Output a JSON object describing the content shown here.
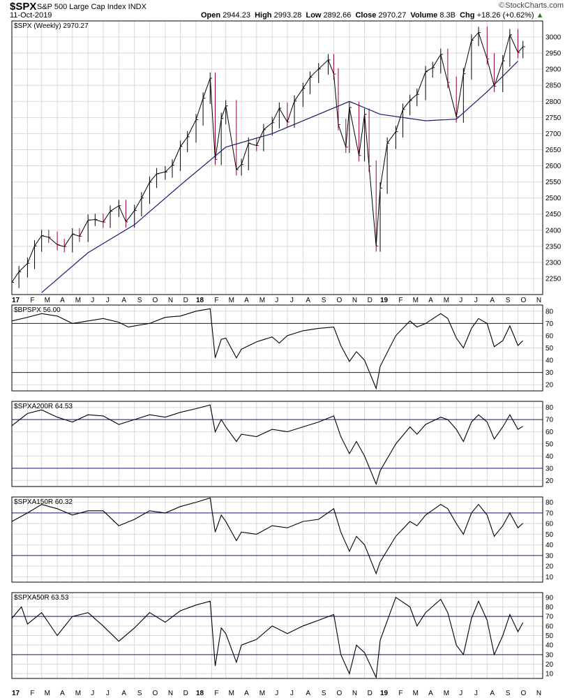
{
  "header": {
    "symbol": "$SPX",
    "long_name": "S&P 500 Large Cap Index  INDX",
    "date": "11-Oct-2019",
    "quote": {
      "open_label": "Open",
      "open": "2944.23",
      "high_label": "High",
      "high": "2993.28",
      "low_label": "Low",
      "low": "2892.66",
      "close_label": "Close",
      "close": "2970.27",
      "volume_label": "Volume",
      "volume": "8.3B",
      "chg_label": "Chg",
      "chg": "+18.26 (+0.62%)"
    },
    "watermark": "StockCharts.com",
    "watermark_icon": "chart-logo-icon"
  },
  "colors": {
    "up_bar": "#000000",
    "down_bar": "#990033",
    "moving_average": "#1a1a6e",
    "guide_lines": "#1a1a6e",
    "grid": "#d8d8d8",
    "breadth_line": "#000000"
  },
  "chart_data": [
    {
      "type": "line",
      "subtype": "ohlc_weekly_with_moving_average",
      "legend": "$SPX (Weekly) 2970.27",
      "ylim": [
        2200,
        3050
      ],
      "y_ticks": [
        2250,
        2300,
        2350,
        2400,
        2450,
        2500,
        2550,
        2600,
        2650,
        2700,
        2750,
        2800,
        2850,
        2900,
        2950,
        3000
      ],
      "x_tick_labels": [
        "17",
        "F",
        "M",
        "A",
        "M",
        "J",
        "J",
        "A",
        "S",
        "O",
        "N",
        "D",
        "18",
        "F",
        "M",
        "A",
        "M",
        "J",
        "J",
        "A",
        "S",
        "O",
        "N",
        "D",
        "19",
        "F",
        "M",
        "A",
        "M",
        "J",
        "J",
        "A",
        "S",
        "O",
        "N"
      ],
      "x_months": [
        "2017-01",
        "2017-02",
        "2017-03",
        "2017-04",
        "2017-05",
        "2017-06",
        "2017-07",
        "2017-08",
        "2017-09",
        "2017-10",
        "2017-11",
        "2017-12",
        "2018-01",
        "2018-02",
        "2018-03",
        "2018-04",
        "2018-05",
        "2018-06",
        "2018-07",
        "2018-08",
        "2018-09",
        "2018-10",
        "2018-11",
        "2018-12",
        "2019-01",
        "2019-02",
        "2019-03",
        "2019-04",
        "2019-05",
        "2019-06",
        "2019-07",
        "2019-08",
        "2019-09",
        "2019-10",
        "2019-11"
      ],
      "price": [
        [
          "2017-01",
          2238
        ],
        [
          "2017-01-15",
          2271
        ],
        [
          "2017-02",
          2297
        ],
        [
          "2017-02-15",
          2351
        ],
        [
          "2017-03",
          2383
        ],
        [
          "2017-03-15",
          2378
        ],
        [
          "2017-04",
          2355
        ],
        [
          "2017-04-15",
          2349
        ],
        [
          "2017-05",
          2388
        ],
        [
          "2017-05-15",
          2381
        ],
        [
          "2017-06",
          2431
        ],
        [
          "2017-06-15",
          2433
        ],
        [
          "2017-07",
          2425
        ],
        [
          "2017-07-15",
          2459
        ],
        [
          "2017-08",
          2476
        ],
        [
          "2017-08-15",
          2426
        ],
        [
          "2017-09",
          2461
        ],
        [
          "2017-09-15",
          2500
        ],
        [
          "2017-10",
          2549
        ],
        [
          "2017-10-15",
          2575
        ],
        [
          "2017-11",
          2581
        ],
        [
          "2017-11-15",
          2602
        ],
        [
          "2017-12",
          2660
        ],
        [
          "2017-12-15",
          2690
        ],
        [
          "2018-01",
          2743
        ],
        [
          "2018-01-15",
          2810
        ],
        [
          "2018-01-29",
          2872
        ],
        [
          "2018-02-08",
          2620
        ],
        [
          "2018-02-20",
          2747
        ],
        [
          "2018-03",
          2786
        ],
        [
          "2018-03-22",
          2588
        ],
        [
          "2018-04",
          2604
        ],
        [
          "2018-04-15",
          2670
        ],
        [
          "2018-05",
          2663
        ],
        [
          "2018-05-15",
          2712
        ],
        [
          "2018-06",
          2734
        ],
        [
          "2018-06-15",
          2779
        ],
        [
          "2018-07",
          2736
        ],
        [
          "2018-07-15",
          2801
        ],
        [
          "2018-08",
          2840
        ],
        [
          "2018-08-15",
          2875
        ],
        [
          "2018-09",
          2901
        ],
        [
          "2018-09-20",
          2929
        ],
        [
          "2018-10",
          2885
        ],
        [
          "2018-10-10",
          2728
        ],
        [
          "2018-10-25",
          2658
        ],
        [
          "2018-11",
          2781
        ],
        [
          "2018-11-20",
          2632
        ],
        [
          "2018-12",
          2760
        ],
        [
          "2018-12-10",
          2599
        ],
        [
          "2018-12-24",
          2351
        ],
        [
          "2019-01",
          2531
        ],
        [
          "2019-01-15",
          2670
        ],
        [
          "2019-02",
          2706
        ],
        [
          "2019-02-15",
          2775
        ],
        [
          "2019-03",
          2803
        ],
        [
          "2019-03-15",
          2822
        ],
        [
          "2019-04",
          2892
        ],
        [
          "2019-04-15",
          2905
        ],
        [
          "2019-05",
          2946
        ],
        [
          "2019-05-15",
          2859
        ],
        [
          "2019-06",
          2752
        ],
        [
          "2019-06-15",
          2886
        ],
        [
          "2019-07",
          2990
        ],
        [
          "2019-07-15",
          3014
        ],
        [
          "2019-08",
          2932
        ],
        [
          "2019-08-15",
          2847
        ],
        [
          "2019-09",
          2926
        ],
        [
          "2019-09-15",
          3007
        ],
        [
          "2019-10",
          2952
        ],
        [
          "2019-10-11",
          2970
        ]
      ],
      "moving_average": [
        [
          "2017-03",
          2206
        ],
        [
          "2017-06",
          2330
        ],
        [
          "2017-09",
          2417
        ],
        [
          "2017-12",
          2540
        ],
        [
          "2018-03",
          2658
        ],
        [
          "2018-06",
          2700
        ],
        [
          "2018-09",
          2760
        ],
        [
          "2018-11",
          2800
        ],
        [
          "2019-01",
          2760
        ],
        [
          "2019-04",
          2740
        ],
        [
          "2019-06",
          2745
        ],
        [
          "2019-08",
          2830
        ],
        [
          "2019-10",
          2925
        ]
      ]
    },
    {
      "type": "line",
      "legend": "$BPSPX 56.00",
      "ylim": [
        15,
        85
      ],
      "y_ticks": [
        20,
        30,
        40,
        50,
        60,
        70,
        80
      ],
      "guides": [
        70,
        30
      ],
      "values": [
        [
          "2017-01",
          72
        ],
        [
          "2017-02",
          75
        ],
        [
          "2017-03",
          78
        ],
        [
          "2017-04",
          76
        ],
        [
          "2017-05",
          70
        ],
        [
          "2017-06",
          72
        ],
        [
          "2017-07",
          74
        ],
        [
          "2017-08",
          71
        ],
        [
          "2017-08-20",
          67
        ],
        [
          "2017-09",
          68
        ],
        [
          "2017-10",
          70
        ],
        [
          "2017-11",
          75
        ],
        [
          "2017-12",
          76
        ],
        [
          "2018-01",
          80
        ],
        [
          "2018-01-29",
          82
        ],
        [
          "2018-02-08",
          42
        ],
        [
          "2018-02-20",
          57
        ],
        [
          "2018-03",
          58
        ],
        [
          "2018-03-22",
          42
        ],
        [
          "2018-04",
          49
        ],
        [
          "2018-05",
          55
        ],
        [
          "2018-06",
          59
        ],
        [
          "2018-06-15",
          54
        ],
        [
          "2018-07",
          60
        ],
        [
          "2018-08",
          64
        ],
        [
          "2018-09",
          66
        ],
        [
          "2018-10",
          67
        ],
        [
          "2018-10-15",
          52
        ],
        [
          "2018-11",
          39
        ],
        [
          "2018-11-15",
          47
        ],
        [
          "2018-12",
          40
        ],
        [
          "2018-12-24",
          17
        ],
        [
          "2019-01",
          35
        ],
        [
          "2019-02",
          60
        ],
        [
          "2019-03",
          72
        ],
        [
          "2019-03-15",
          67
        ],
        [
          "2019-04",
          70
        ],
        [
          "2019-05",
          78
        ],
        [
          "2019-05-15",
          74
        ],
        [
          "2019-06",
          58
        ],
        [
          "2019-06-15",
          50
        ],
        [
          "2019-07",
          66
        ],
        [
          "2019-07-15",
          74
        ],
        [
          "2019-08",
          70
        ],
        [
          "2019-08-15",
          51
        ],
        [
          "2019-09",
          56
        ],
        [
          "2019-09-15",
          68
        ],
        [
          "2019-10",
          52
        ],
        [
          "2019-10-11",
          56
        ]
      ]
    },
    {
      "type": "line",
      "legend": "$SPXA200R 64.53",
      "ylim": [
        15,
        85
      ],
      "y_ticks": [
        20,
        30,
        40,
        50,
        60,
        70,
        80
      ],
      "guides": [
        70,
        30
      ],
      "values": [
        [
          "2017-01",
          65
        ],
        [
          "2017-02",
          75
        ],
        [
          "2017-03",
          78
        ],
        [
          "2017-04",
          72
        ],
        [
          "2017-05",
          68
        ],
        [
          "2017-06",
          74
        ],
        [
          "2017-07",
          73
        ],
        [
          "2017-08",
          66
        ],
        [
          "2017-09",
          70
        ],
        [
          "2017-10",
          74
        ],
        [
          "2017-11",
          72
        ],
        [
          "2017-12",
          76
        ],
        [
          "2018-01",
          79
        ],
        [
          "2018-01-29",
          82
        ],
        [
          "2018-02-08",
          60
        ],
        [
          "2018-02-20",
          70
        ],
        [
          "2018-03",
          64
        ],
        [
          "2018-03-22",
          52
        ],
        [
          "2018-04",
          58
        ],
        [
          "2018-05",
          56
        ],
        [
          "2018-06",
          62
        ],
        [
          "2018-07",
          60
        ],
        [
          "2018-08",
          64
        ],
        [
          "2018-09",
          68
        ],
        [
          "2018-10",
          73
        ],
        [
          "2018-10-15",
          56
        ],
        [
          "2018-11",
          42
        ],
        [
          "2018-11-15",
          52
        ],
        [
          "2018-12",
          40
        ],
        [
          "2018-12-24",
          17
        ],
        [
          "2019-01",
          28
        ],
        [
          "2019-02",
          50
        ],
        [
          "2019-03",
          64
        ],
        [
          "2019-03-15",
          58
        ],
        [
          "2019-04",
          66
        ],
        [
          "2019-05",
          72
        ],
        [
          "2019-05-15",
          70
        ],
        [
          "2019-06",
          62
        ],
        [
          "2019-06-15",
          52
        ],
        [
          "2019-07",
          68
        ],
        [
          "2019-07-15",
          74
        ],
        [
          "2019-08",
          68
        ],
        [
          "2019-08-15",
          54
        ],
        [
          "2019-09",
          64
        ],
        [
          "2019-09-15",
          74
        ],
        [
          "2019-10",
          62
        ],
        [
          "2019-10-11",
          64.53
        ]
      ]
    },
    {
      "type": "line",
      "legend": "$SPXA150R 60.32",
      "ylim": [
        5,
        85
      ],
      "y_ticks": [
        10,
        20,
        30,
        40,
        50,
        60,
        70,
        80
      ],
      "guides": [
        70,
        30
      ],
      "values": [
        [
          "2017-01",
          62
        ],
        [
          "2017-02",
          70
        ],
        [
          "2017-03",
          78
        ],
        [
          "2017-04",
          74
        ],
        [
          "2017-05",
          68
        ],
        [
          "2017-06",
          72
        ],
        [
          "2017-07",
          72
        ],
        [
          "2017-08",
          58
        ],
        [
          "2017-09",
          64
        ],
        [
          "2017-10",
          72
        ],
        [
          "2017-11",
          70
        ],
        [
          "2017-12",
          76
        ],
        [
          "2018-01",
          80
        ],
        [
          "2018-01-29",
          84
        ],
        [
          "2018-02-08",
          52
        ],
        [
          "2018-02-20",
          68
        ],
        [
          "2018-03",
          62
        ],
        [
          "2018-03-22",
          44
        ],
        [
          "2018-04",
          52
        ],
        [
          "2018-05",
          50
        ],
        [
          "2018-06",
          58
        ],
        [
          "2018-07",
          56
        ],
        [
          "2018-08",
          62
        ],
        [
          "2018-09",
          64
        ],
        [
          "2018-10",
          74
        ],
        [
          "2018-10-15",
          52
        ],
        [
          "2018-11",
          34
        ],
        [
          "2018-11-15",
          48
        ],
        [
          "2018-12",
          40
        ],
        [
          "2018-12-24",
          13
        ],
        [
          "2019-01",
          24
        ],
        [
          "2019-02",
          48
        ],
        [
          "2019-03",
          62
        ],
        [
          "2019-03-15",
          58
        ],
        [
          "2019-04",
          68
        ],
        [
          "2019-05",
          78
        ],
        [
          "2019-05-15",
          74
        ],
        [
          "2019-06",
          60
        ],
        [
          "2019-06-15",
          50
        ],
        [
          "2019-07",
          70
        ],
        [
          "2019-07-15",
          78
        ],
        [
          "2019-08",
          68
        ],
        [
          "2019-08-15",
          48
        ],
        [
          "2019-09",
          58
        ],
        [
          "2019-09-15",
          70
        ],
        [
          "2019-10",
          56
        ],
        [
          "2019-10-11",
          60.32
        ]
      ]
    },
    {
      "type": "line",
      "legend": "$SPXA50R 63.53",
      "ylim": [
        5,
        95
      ],
      "y_ticks": [
        10,
        20,
        30,
        40,
        50,
        60,
        70,
        80,
        90
      ],
      "guides": [
        70,
        30
      ],
      "values": [
        [
          "2017-01",
          68
        ],
        [
          "2017-01-20",
          80
        ],
        [
          "2017-02",
          62
        ],
        [
          "2017-03",
          74
        ],
        [
          "2017-04",
          50
        ],
        [
          "2017-05",
          70
        ],
        [
          "2017-06",
          74
        ],
        [
          "2017-07",
          60
        ],
        [
          "2017-08",
          44
        ],
        [
          "2017-09",
          58
        ],
        [
          "2017-10",
          74
        ],
        [
          "2017-11",
          64
        ],
        [
          "2017-12",
          76
        ],
        [
          "2018-01",
          82
        ],
        [
          "2018-01-29",
          86
        ],
        [
          "2018-02-08",
          18
        ],
        [
          "2018-02-20",
          58
        ],
        [
          "2018-03",
          52
        ],
        [
          "2018-03-22",
          22
        ],
        [
          "2018-04",
          40
        ],
        [
          "2018-05",
          46
        ],
        [
          "2018-06",
          60
        ],
        [
          "2018-07",
          52
        ],
        [
          "2018-08",
          60
        ],
        [
          "2018-09",
          66
        ],
        [
          "2018-10",
          72
        ],
        [
          "2018-10-15",
          30
        ],
        [
          "2018-11",
          10
        ],
        [
          "2018-11-15",
          40
        ],
        [
          "2018-12",
          32
        ],
        [
          "2018-12-24",
          6
        ],
        [
          "2019-01",
          45
        ],
        [
          "2019-02",
          90
        ],
        [
          "2019-03",
          80
        ],
        [
          "2019-03-15",
          60
        ],
        [
          "2019-04",
          74
        ],
        [
          "2019-05",
          88
        ],
        [
          "2019-05-15",
          74
        ],
        [
          "2019-06",
          40
        ],
        [
          "2019-06-15",
          30
        ],
        [
          "2019-07",
          68
        ],
        [
          "2019-07-15",
          86
        ],
        [
          "2019-08",
          66
        ],
        [
          "2019-08-15",
          30
        ],
        [
          "2019-09",
          50
        ],
        [
          "2019-09-15",
          72
        ],
        [
          "2019-10",
          54
        ],
        [
          "2019-10-11",
          63.53
        ]
      ]
    }
  ]
}
